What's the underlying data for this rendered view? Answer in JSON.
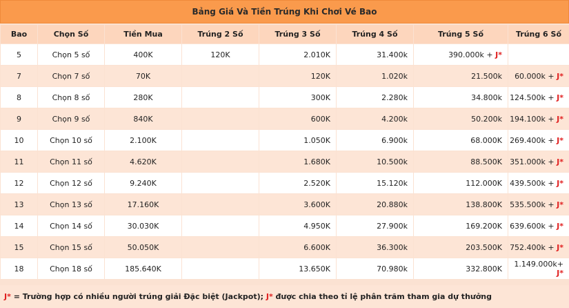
{
  "title": "Bảng Giá Và Tiền Trúng Khi Chơi Vé Bao",
  "headers": [
    "Bao",
    "Chọn Số",
    "Tiền Mua",
    "Trúng 2 Số",
    "Trúng 3 Số",
    "Trúng 4 Số",
    "Trúng 5 Số",
    "Trúng 6 Số"
  ],
  "jackpot_marker": "J*",
  "rows": [
    {
      "bao": "5",
      "chon": "Chọn 5 số",
      "mua": "400K",
      "t2": "120K",
      "t3": "2.010K",
      "t4": "31.400k",
      "t5": "390.000k +",
      "t6": ""
    },
    {
      "bao": "7",
      "chon": "Chọn 7 số",
      "mua": "70K",
      "t2": "",
      "t3": "120K",
      "t4": "1.020k",
      "t5": "21.500k",
      "t6": "60.000k +"
    },
    {
      "bao": "8",
      "chon": "Chọn 8 số",
      "mua": "280K",
      "t2": "",
      "t3": "300K",
      "t4": "2.280k",
      "t5": "34.800k",
      "t6": "124.500k +"
    },
    {
      "bao": "9",
      "chon": "Chọn 9 số",
      "mua": "840K",
      "t2": "",
      "t3": "600K",
      "t4": "4.200k",
      "t5": "50.200k",
      "t6": "194.100k +"
    },
    {
      "bao": "10",
      "chon": "Chọn 10 số",
      "mua": "2.100K",
      "t2": "",
      "t3": "1.050K",
      "t4": "6.900k",
      "t5": "68.000K",
      "t6": "269.400k +"
    },
    {
      "bao": "11",
      "chon": "Chọn 11 số",
      "mua": "4.620K",
      "t2": "",
      "t3": "1.680K",
      "t4": "10.500k",
      "t5": "88.500K",
      "t6": "351.000k +"
    },
    {
      "bao": "12",
      "chon": "Chọn 12 số",
      "mua": "9.240K",
      "t2": "",
      "t3": "2.520K",
      "t4": "15.120k",
      "t5": "112.000K",
      "t6": "439.500k +"
    },
    {
      "bao": "13",
      "chon": "Chọn 13 số",
      "mua": "17.160K",
      "t2": "",
      "t3": "3.600K",
      "t4": "20.880k",
      "t5": "138.800K",
      "t6": "535.500k +"
    },
    {
      "bao": "14",
      "chon": "Chọn 14 số",
      "mua": "30.030K",
      "t2": "",
      "t3": "4.950K",
      "t4": "27.900k",
      "t5": "169.200K",
      "t6": "639.600k +"
    },
    {
      "bao": "15",
      "chon": "Chọn 15 số",
      "mua": "50.050K",
      "t2": "",
      "t3": "6.600K",
      "t4": "36.300k",
      "t5": "203.500K",
      "t6": "752.400k +"
    },
    {
      "bao": "18",
      "chon": "Chọn 18 số",
      "mua": "185.640K",
      "t2": "",
      "t3": "13.650K",
      "t4": "70.980k",
      "t5": "332.800K",
      "t6": "1.149.000k+"
    }
  ],
  "footer": {
    "marker1": "J*",
    "text1": " = Trường hợp có nhiều người trúng giải Đặc biệt (Jackpot); ",
    "marker2": "J*",
    "text2": " được chia theo tỉ lệ phân trăm tham gia dự thưởng"
  }
}
